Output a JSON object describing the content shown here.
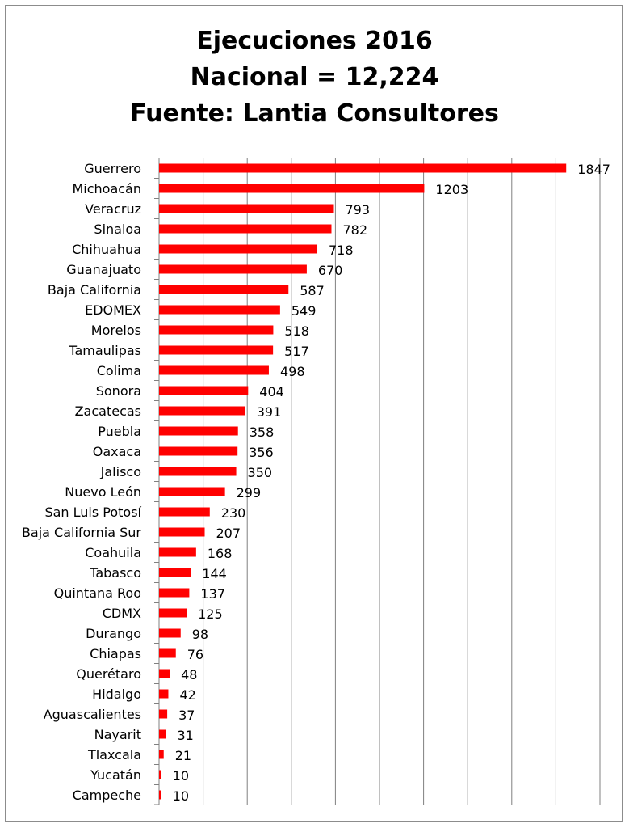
{
  "chart_data": {
    "type": "bar",
    "orientation": "horizontal",
    "title_lines": [
      "Ejecuciones 2016",
      "Nacional = 12,224",
      "Fuente: Lantia Consultores"
    ],
    "categories": [
      "Guerrero",
      "Michoacán",
      "Veracruz",
      "Sinaloa",
      "Chihuahua",
      "Guanajuato",
      "Baja California",
      "EDOMEX",
      "Morelos",
      "Tamaulipas",
      "Colima",
      "Sonora",
      "Zacatecas",
      "Puebla",
      "Oaxaca",
      "Jalisco",
      "Nuevo León",
      "San Luis Potosí",
      "Baja California Sur",
      "Coahuila",
      "Tabasco",
      "Quintana Roo",
      "CDMX",
      "Durango",
      "Chiapas",
      "Querétaro",
      "Hidalgo",
      "Aguascalientes",
      "Nayarit",
      "Tlaxcala",
      "Yucatán",
      "Campeche"
    ],
    "values": [
      1847,
      1203,
      793,
      782,
      718,
      670,
      587,
      549,
      518,
      517,
      498,
      404,
      391,
      358,
      356,
      350,
      299,
      230,
      207,
      168,
      144,
      137,
      125,
      98,
      76,
      48,
      42,
      37,
      31,
      21,
      10,
      10
    ],
    "xlim": [
      0,
      2000
    ],
    "grid": true,
    "bar_color": "#ff0000",
    "grid_color": "#808080"
  }
}
